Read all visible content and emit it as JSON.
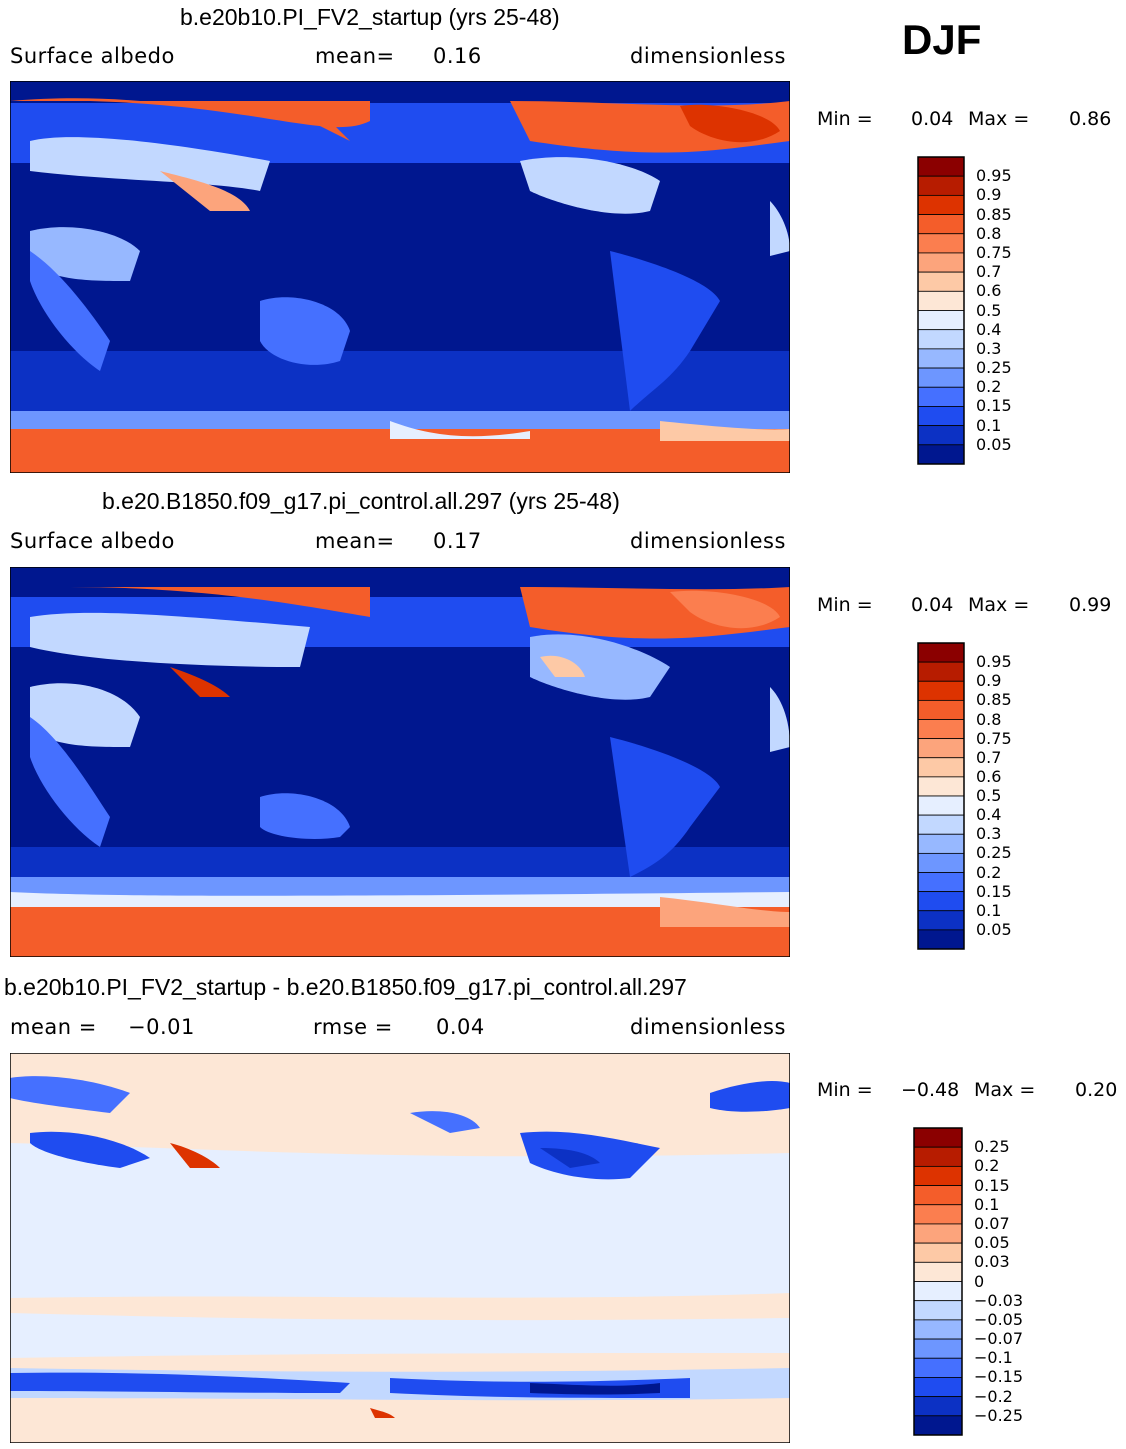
{
  "season": "DJF",
  "chart_data": [
    {
      "type": "heatmap",
      "title": "b.e20b10.PI_FV2_startup (yrs 25-48)",
      "left_label": "Surface albedo",
      "center_label": "mean=",
      "center_value": "0.16",
      "right_label": "dimensionless",
      "min_label": "Min =",
      "min_value": "0.04",
      "max_label": "Max =",
      "max_value": "0.86",
      "colorbar": {
        "levels": [
          "0.95",
          "0.9",
          "0.85",
          "0.8",
          "0.75",
          "0.7",
          "0.6",
          "0.5",
          "0.4",
          "0.3",
          "0.25",
          "0.2",
          "0.15",
          "0.1",
          "0.05"
        ],
        "colors": [
          "#8b0000",
          "#b71c00",
          "#dd3300",
          "#f45d2a",
          "#fb7e4f",
          "#fca47c",
          "#fdc9a6",
          "#fde7d6",
          "#e6efff",
          "#c2d8ff",
          "#97b8ff",
          "#6d96ff",
          "#4570ff",
          "#1f4cf0",
          "#0c31c4",
          "#00178f"
        ]
      }
    },
    {
      "type": "heatmap",
      "title": "b.e20.B1850.f09_g17.pi_control.all.297 (yrs 25-48)",
      "left_label": "Surface albedo",
      "center_label": "mean=",
      "center_value": "0.17",
      "right_label": "dimensionless",
      "min_label": "Min =",
      "min_value": "0.04",
      "max_label": "Max =",
      "max_value": "0.99",
      "colorbar": {
        "levels": [
          "0.95",
          "0.9",
          "0.85",
          "0.8",
          "0.75",
          "0.7",
          "0.6",
          "0.5",
          "0.4",
          "0.3",
          "0.25",
          "0.2",
          "0.15",
          "0.1",
          "0.05"
        ],
        "colors": [
          "#8b0000",
          "#b71c00",
          "#dd3300",
          "#f45d2a",
          "#fb7e4f",
          "#fca47c",
          "#fdc9a6",
          "#fde7d6",
          "#e6efff",
          "#c2d8ff",
          "#97b8ff",
          "#6d96ff",
          "#4570ff",
          "#1f4cf0",
          "#0c31c4",
          "#00178f"
        ]
      }
    },
    {
      "type": "heatmap",
      "title": "b.e20b10.PI_FV2_startup - b.e20.B1850.f09_g17.pi_control.all.297",
      "left_label": "mean =",
      "left_value": "−0.01",
      "center_label": "rmse =",
      "center_value": "0.04",
      "right_label": "dimensionless",
      "min_label": "Min =",
      "min_value": "−0.48",
      "max_label": "Max =",
      "max_value": "0.20",
      "colorbar": {
        "levels": [
          "0.25",
          "0.2",
          "0.15",
          "0.1",
          "0.07",
          "0.05",
          "0.03",
          "0",
          "−0.03",
          "−0.05",
          "−0.07",
          "−0.1",
          "−0.15",
          "−0.2",
          "−0.25"
        ],
        "colors": [
          "#8b0000",
          "#b71c00",
          "#dd3300",
          "#f45d2a",
          "#fb7e4f",
          "#fca47c",
          "#fdc9a6",
          "#fde7d6",
          "#e6efff",
          "#c2d8ff",
          "#97b8ff",
          "#6d96ff",
          "#4570ff",
          "#1f4cf0",
          "#0c31c4",
          "#00178f"
        ]
      }
    }
  ]
}
